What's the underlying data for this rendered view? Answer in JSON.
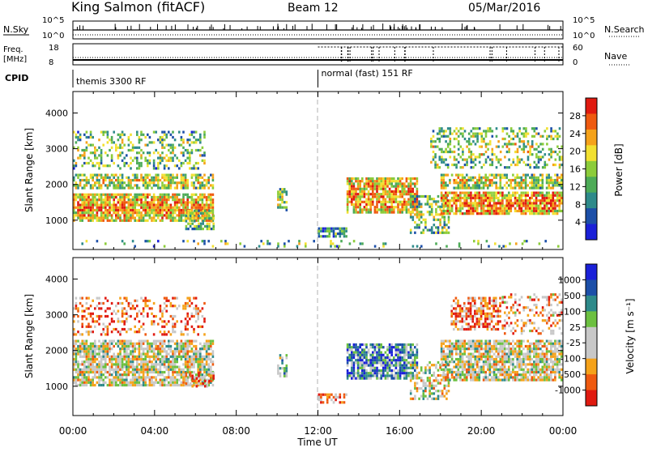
{
  "header": {
    "station": "King Salmon (fitACF)",
    "beam": "Beam 12",
    "date": "05/Mar/2016"
  },
  "summary": {
    "nsky_label": "N.Sky",
    "nsearch_label": "N.Search",
    "nsky_ticks": [
      "10^5",
      "10^0"
    ],
    "nsearch_ticks": [
      "10^5",
      "10^0"
    ],
    "freq_label_top": "Freq.",
    "freq_label_unit": "[MHz]",
    "freq_ticks": [
      "18",
      "8"
    ],
    "nave_label": "Nave",
    "nave_ticks": [
      "60",
      "0"
    ],
    "cpid_label": "CPID",
    "cpid_modes": [
      {
        "label": "themis 3300 RF",
        "start_hour": 0
      },
      {
        "label": "normal (fast) 151 RF",
        "start_hour": 12
      }
    ]
  },
  "x_axis": {
    "label": "Time UT",
    "ticks": [
      "00:00",
      "04:00",
      "08:00",
      "12:00",
      "16:00",
      "20:00",
      "00:00"
    ],
    "hours": [
      0,
      4,
      8,
      12,
      16,
      20,
      24
    ]
  },
  "colors": {
    "power": [
      "#1a20d8",
      "#1c4fa8",
      "#2e8a8a",
      "#4dab57",
      "#8ccc3a",
      "#f2e030",
      "#f5a21a",
      "#ef5a10",
      "#e01a10"
    ],
    "velocity": [
      "#e01a10",
      "#ef5a10",
      "#f5a21a",
      "#c8c8c8",
      "#c8c8c8",
      "#6cc040",
      "#2e8a8a",
      "#1c4fa8",
      "#1a20d8"
    ]
  },
  "chart_data": [
    {
      "type": "heatmap",
      "name": "power",
      "xlabel": "",
      "ylabel": "Slant Range [km]",
      "x_range": [
        0,
        24
      ],
      "ylim": [
        180,
        4600
      ],
      "yticks": [
        1000,
        2000,
        3000,
        4000
      ],
      "colorbar": {
        "label": "Power [dB]",
        "range": [
          0,
          32
        ],
        "ticks": [
          4,
          8,
          12,
          16,
          20,
          24,
          28
        ]
      },
      "patches": [
        {
          "t0": 0.0,
          "t1": 7.0,
          "r0": 950,
          "r1": 1750,
          "density": 0.85,
          "level": 0.6
        },
        {
          "t0": 0.0,
          "t1": 7.0,
          "r0": 1800,
          "r1": 2300,
          "density": 0.7,
          "level": 0.45
        },
        {
          "t0": 0.0,
          "t1": 6.5,
          "r0": 2350,
          "r1": 3500,
          "density": 0.35,
          "level": 0.35
        },
        {
          "t0": 5.5,
          "t1": 7.0,
          "r0": 700,
          "r1": 1300,
          "density": 0.6,
          "level": 0.35
        },
        {
          "t0": 10.0,
          "t1": 10.6,
          "r0": 1200,
          "r1": 1900,
          "density": 0.6,
          "level": 0.4
        },
        {
          "t0": 12.0,
          "t1": 13.5,
          "r0": 500,
          "r1": 800,
          "density": 0.7,
          "level": 0.25
        },
        {
          "t0": 13.4,
          "t1": 17.0,
          "r0": 1150,
          "r1": 2200,
          "density": 0.8,
          "level": 0.6
        },
        {
          "t0": 16.5,
          "t1": 18.5,
          "r0": 600,
          "r1": 1700,
          "density": 0.5,
          "level": 0.35
        },
        {
          "t0": 18.0,
          "t1": 24.0,
          "r0": 1100,
          "r1": 1800,
          "density": 0.85,
          "level": 0.65
        },
        {
          "t0": 18.0,
          "t1": 24.0,
          "r0": 1800,
          "r1": 2300,
          "density": 0.65,
          "level": 0.45
        },
        {
          "t0": 17.5,
          "t1": 24.0,
          "r0": 2400,
          "r1": 3600,
          "density": 0.4,
          "level": 0.4
        },
        {
          "t0": 0.0,
          "t1": 24.0,
          "r0": 200,
          "r1": 450,
          "density": 0.12,
          "level": 0.3
        }
      ]
    },
    {
      "type": "heatmap",
      "name": "velocity",
      "xlabel": "Time UT",
      "ylabel": "Slant Range [km]",
      "x_range": [
        0,
        24
      ],
      "ylim": [
        180,
        4600
      ],
      "yticks": [
        1000,
        2000,
        3000,
        4000
      ],
      "colorbar": {
        "label": "Velocity [m s⁻¹]",
        "range": [
          -1000,
          1000
        ],
        "ticks": [
          "1000",
          "500",
          "100",
          "25",
          "-25",
          "-100",
          "-500",
          "-1000"
        ]
      },
      "patches": [
        {
          "t0": 0.0,
          "t1": 7.0,
          "r0": 950,
          "r1": 2300,
          "density": 0.8,
          "level": 0.45
        },
        {
          "t0": 0.0,
          "t1": 6.5,
          "r0": 2350,
          "r1": 3500,
          "density": 0.3,
          "level": 0.2
        },
        {
          "t0": 5.5,
          "t1": 7.0,
          "r0": 900,
          "r1": 1400,
          "density": 0.5,
          "level": 0.25
        },
        {
          "t0": 10.0,
          "t1": 10.6,
          "r0": 1200,
          "r1": 1900,
          "density": 0.5,
          "level": 0.6
        },
        {
          "t0": 12.0,
          "t1": 13.5,
          "r0": 500,
          "r1": 800,
          "density": 0.6,
          "level": 0.25
        },
        {
          "t0": 13.4,
          "t1": 17.0,
          "r0": 1150,
          "r1": 2200,
          "density": 0.8,
          "level": 0.7
        },
        {
          "t0": 16.5,
          "t1": 18.5,
          "r0": 600,
          "r1": 1700,
          "density": 0.45,
          "level": 0.45
        },
        {
          "t0": 18.0,
          "t1": 24.0,
          "r0": 1100,
          "r1": 2300,
          "density": 0.8,
          "level": 0.45
        },
        {
          "t0": 18.5,
          "t1": 21.0,
          "r0": 2500,
          "r1": 3500,
          "density": 0.6,
          "level": 0.2
        },
        {
          "t0": 21.0,
          "t1": 24.0,
          "r0": 2400,
          "r1": 3600,
          "density": 0.25,
          "level": 0.3
        }
      ]
    }
  ]
}
